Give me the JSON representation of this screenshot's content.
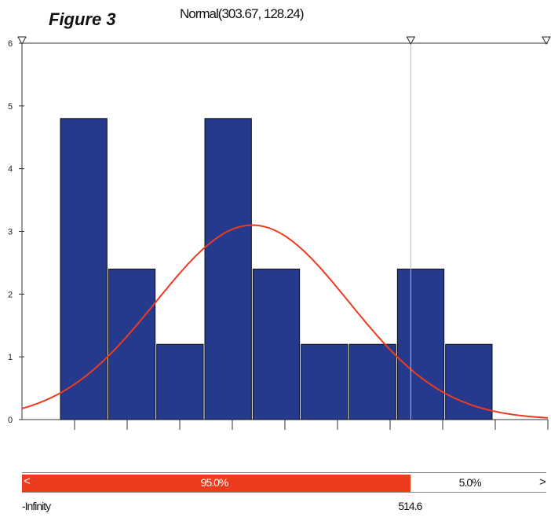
{
  "figure_label": "Figure 3",
  "chart_data": {
    "type": "bar",
    "title": "Normal(303.67, 128.24)",
    "xlabel": "",
    "ylabel": "",
    "ylim": [
      0,
      6
    ],
    "yticks": [
      "0",
      "1",
      "2",
      "3",
      "4",
      "5",
      "6"
    ],
    "bins": [
      {
        "label": "bin 1",
        "value": 4.8
      },
      {
        "label": "bin 2",
        "value": 2.4
      },
      {
        "label": "bin 3",
        "value": 1.2
      },
      {
        "label": "bin 4",
        "value": 4.8
      },
      {
        "label": "bin 5",
        "value": 2.4
      },
      {
        "label": "bin 6",
        "value": 1.2
      },
      {
        "label": "bin 7",
        "value": 1.2
      },
      {
        "label": "bin 8",
        "value": 2.4
      },
      {
        "label": "bin 9",
        "value": 1.2
      }
    ],
    "curve": {
      "mean": 303.67,
      "sd": 128.24,
      "peak_y": 3.1
    },
    "xlim": [
      47,
      624
    ],
    "cutoff_x": 514.6,
    "colors": {
      "bar": "#253a8c",
      "curve": "#ee3b1f",
      "strip": "#ee3b1f"
    }
  },
  "probability_strip": {
    "left_pct": "95.0%",
    "right_pct": "5.0%",
    "left_fraction": 0.95,
    "left_arrow": "<",
    "right_arrow": ">",
    "low_label": "-Infinity",
    "high_label": "514.6"
  }
}
